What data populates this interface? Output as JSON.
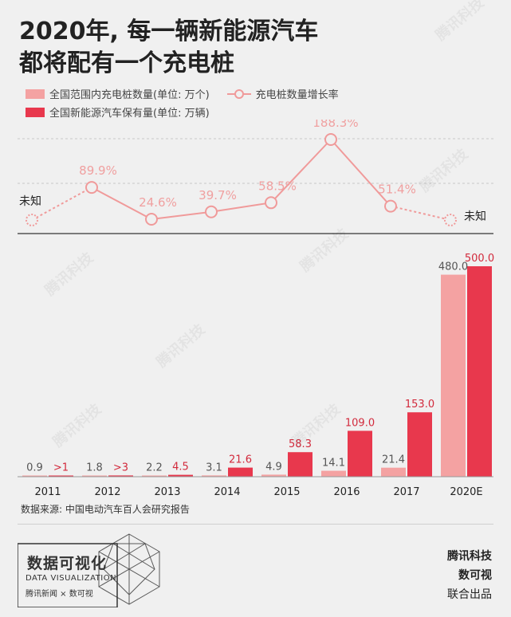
{
  "title_lines": [
    "2020年, 每一辆新能源汽车",
    "都将配有一个充电桩"
  ],
  "legend": {
    "piles": "全国范围内充电桩数量(单位: 万个)",
    "growth": "充电桩数量增长率",
    "evs": "全国新能源汽车保有量(单位: 万辆)"
  },
  "colors": {
    "piles": "#f4a2a2",
    "evs": "#e8384d",
    "growth_line": "#f09a9a",
    "growth_text": "#f0a0a0",
    "ev_label": "#d22a3c"
  },
  "source": "数据来源: 中国电动汽车百人会研究报告",
  "brand": {
    "title": "数据可视化",
    "subtitle": "DATA VISUALIZATION",
    "logos": "腾讯新闻 × 数可视"
  },
  "credits": [
    "腾讯科技",
    "数可视",
    "联合出品"
  ],
  "watermark": "腾讯科技",
  "chart_data": {
    "type": "bar",
    "categories": [
      "2011",
      "2012",
      "2013",
      "2014",
      "2015",
      "2016",
      "2017",
      "2020E"
    ],
    "series": [
      {
        "name": "全国范围内充电桩数量(单位: 万个)",
        "values": [
          0.9,
          1.8,
          2.2,
          3.1,
          4.9,
          14.1,
          21.4,
          480.0
        ],
        "labels": [
          "0.9",
          "1.8",
          "2.2",
          "3.1",
          "4.9",
          "14.1",
          "21.4",
          "480.0"
        ]
      },
      {
        "name": "全国新能源汽车保有量(单位: 万辆)",
        "values": [
          1,
          3,
          4.5,
          21.6,
          58.3,
          109.0,
          153.0,
          500.0
        ],
        "labels": [
          ">1",
          ">3",
          "4.5",
          "21.6",
          "58.3",
          "109.0",
          "153.0",
          "500.0"
        ]
      }
    ],
    "growth_series": {
      "name": "充电桩数量增长率",
      "type": "line",
      "values": [
        null,
        89.9,
        24.6,
        39.7,
        58.5,
        188.3,
        51.4,
        null
      ],
      "labels": [
        "未知",
        "89.9%",
        "24.6%",
        "39.7%",
        "58.5%",
        "188.3%",
        "51.4%",
        "未知"
      ],
      "unknown_label": "未知"
    },
    "ylim": [
      0,
      500
    ]
  }
}
